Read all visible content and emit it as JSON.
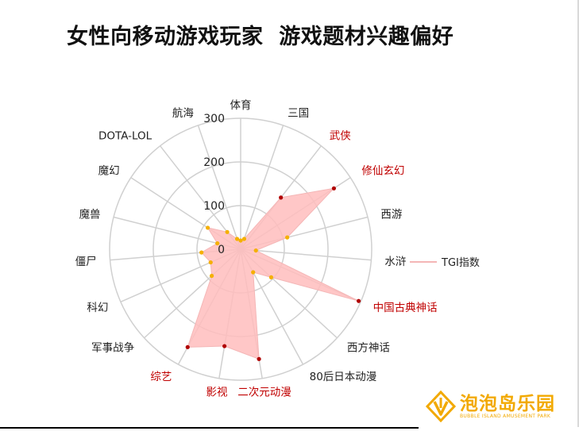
{
  "title": "女性向移动游戏玩家  游戏题材兴趣偏好",
  "legend": {
    "label": "TGI指数"
  },
  "brand": {
    "name": "泡泡岛乐园",
    "tagline": "BUBBLE ISLAND AMUSEMENT PARK",
    "color": "#f2a900"
  },
  "colors": {
    "fill": "#ffbdbd",
    "line": "#f4b6b6",
    "highlight_text": "#c00000",
    "normal_text": "#222222",
    "high_dot": "#b00000",
    "low_dot": "#f5b000",
    "grid": "#d0d0d0"
  },
  "chart_data": {
    "type": "radar",
    "title": "",
    "rlim": [
      0,
      300
    ],
    "ticks": [
      0,
      100,
      200,
      300
    ],
    "grid": true,
    "legend_position": "right",
    "categories": [
      "体育",
      "三国",
      "武侠",
      "修仙玄幻",
      "西游",
      "水浒",
      "中国古典神话",
      "西方神话",
      "80后日本动漫",
      "二次元动漫",
      "影视",
      "综艺",
      "军事战争",
      "科幻",
      "僵尸",
      "魔兽",
      "魔幻",
      "DOTA-LOL",
      "航海"
    ],
    "highlighted": [
      "武侠",
      "修仙玄幻",
      "中国古典神话",
      "二次元动漫",
      "影视",
      "综艺"
    ],
    "series": [
      {
        "name": "TGI指数",
        "values": [
          20,
          25,
          150,
          255,
          110,
          35,
          295,
          95,
          60,
          255,
          225,
          255,
          90,
          75,
          90,
          55,
          90,
          50,
          25
        ]
      }
    ]
  }
}
